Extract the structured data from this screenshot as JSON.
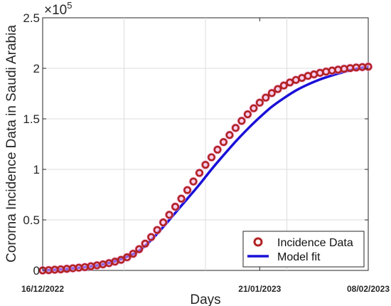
{
  "chart_data": {
    "type": "line",
    "xlabel": "Days",
    "ylabel": "Cororna  Incidence Data in Saudi Arabia",
    "xlim": [
      "2022-12-16",
      "2023-02-08"
    ],
    "x_ticks": [
      "2022-12-16",
      "2023-01-21",
      "2023-02-08"
    ],
    "x_tick_labels": [
      "16/12/2022",
      "21/01/2023",
      "08/02/2023"
    ],
    "ylim": [
      0,
      250000
    ],
    "y_ticks": [
      0,
      50000,
      100000,
      150000,
      200000,
      250000
    ],
    "y_tick_labels": [
      "0",
      "0.5",
      "1",
      "1.5",
      "2",
      "2.5"
    ],
    "y_exponent_base": "×10",
    "y_exponent_power": "5",
    "grid": true,
    "legend_position": "bottom-right",
    "colors": {
      "data": "#b22222",
      "data_glow": "#f2a6e6",
      "fit": "#1a10d8"
    },
    "series": [
      {
        "name": "Incidence Data",
        "style": "markers",
        "x": [
          "2022-12-16",
          "2022-12-17",
          "2022-12-18",
          "2022-12-19",
          "2022-12-20",
          "2022-12-21",
          "2022-12-22",
          "2022-12-23",
          "2022-12-24",
          "2022-12-25",
          "2022-12-26",
          "2022-12-27",
          "2022-12-28",
          "2022-12-29",
          "2022-12-30",
          "2022-12-31",
          "2023-01-01",
          "2023-01-02",
          "2023-01-03",
          "2023-01-04",
          "2023-01-05",
          "2023-01-06",
          "2023-01-07",
          "2023-01-08",
          "2023-01-09",
          "2023-01-10",
          "2023-01-11",
          "2023-01-12",
          "2023-01-13",
          "2023-01-14",
          "2023-01-15",
          "2023-01-16",
          "2023-01-17",
          "2023-01-18",
          "2023-01-19",
          "2023-01-20",
          "2023-01-21",
          "2023-01-22",
          "2023-01-23",
          "2023-01-24",
          "2023-01-25",
          "2023-01-26",
          "2023-01-27",
          "2023-01-28",
          "2023-01-29",
          "2023-01-30",
          "2023-01-31",
          "2023-02-01",
          "2023-02-02",
          "2023-02-03",
          "2023-02-04",
          "2023-02-05",
          "2023-02-06",
          "2023-02-07",
          "2023-02-08"
        ],
        "values": [
          0,
          300,
          700,
          1100,
          1600,
          2100,
          2700,
          3300,
          4100,
          5000,
          6000,
          7200,
          8700,
          10500,
          13000,
          16500,
          21000,
          26500,
          33000,
          40000,
          47500,
          55000,
          63000,
          71000,
          79500,
          88000,
          96500,
          104500,
          112000,
          119500,
          127000,
          134000,
          141000,
          148000,
          154500,
          160500,
          166000,
          171000,
          175500,
          179500,
          183000,
          186000,
          188500,
          190500,
          192500,
          194000,
          195500,
          196700,
          197800,
          198700,
          199500,
          200200,
          200800,
          201200,
          201600
        ]
      },
      {
        "name": "Model fit",
        "style": "line",
        "x": [
          "2022-12-16",
          "2022-12-18",
          "2022-12-20",
          "2022-12-22",
          "2022-12-24",
          "2022-12-26",
          "2022-12-28",
          "2022-12-30",
          "2023-01-01",
          "2023-01-03",
          "2023-01-05",
          "2023-01-07",
          "2023-01-09",
          "2023-01-11",
          "2023-01-13",
          "2023-01-15",
          "2023-01-17",
          "2023-01-19",
          "2023-01-21",
          "2023-01-23",
          "2023-01-25",
          "2023-01-27",
          "2023-01-29",
          "2023-01-31",
          "2023-02-02",
          "2023-02-04",
          "2023-02-06",
          "2023-02-08"
        ],
        "values": [
          0,
          600,
          1500,
          2600,
          4000,
          6000,
          9000,
          13500,
          19500,
          30000,
          43000,
          57000,
          71000,
          85000,
          100000,
          114000,
          127500,
          140000,
          151500,
          162000,
          170500,
          178000,
          184000,
          189000,
          193000,
          196500,
          199500,
          201500
        ]
      }
    ]
  }
}
